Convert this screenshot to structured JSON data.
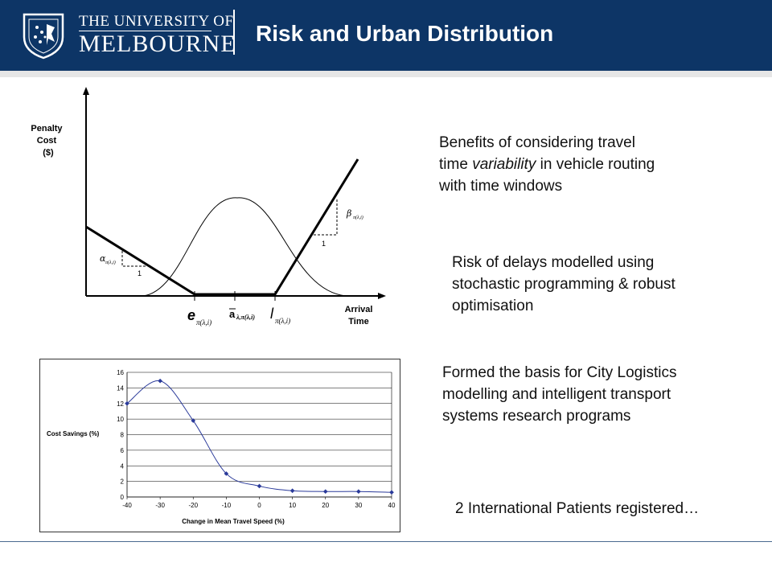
{
  "header": {
    "university_line1": "THE UNIVERSITY OF",
    "university_line2": "MELBOURNE",
    "title": "Risk and Urban Distribution",
    "brand_color": "#0d3566",
    "logo_icon": "university-crest-icon"
  },
  "figure1": {
    "y_label_line1": "Penalty",
    "y_label_line2": "Cost",
    "y_label_line3": "($)",
    "x_label_line1": "Arrival",
    "x_label_line2": "Time",
    "label_e": "e",
    "label_e_sub": "π(λ,i)",
    "label_a": "a",
    "label_a_sub": "λ,π(λ,i)",
    "label_l": "l",
    "label_l_sub": "π(λ,i)",
    "label_alpha": "α",
    "label_alpha_sub": "π(λ,i)",
    "label_beta": "β",
    "label_beta_sub": "π(λ,i)",
    "label_one_left": "1",
    "label_one_right": "1"
  },
  "chart_data": {
    "type": "line",
    "xlabel": "Change in Mean Travel Speed (%)",
    "ylabel": "Cost Savings (%)",
    "xlim": [
      -40,
      40
    ],
    "ylim": [
      0,
      16
    ],
    "xticks": [
      -40,
      -30,
      -20,
      -10,
      0,
      10,
      20,
      30,
      40
    ],
    "yticks": [
      0,
      2,
      4,
      6,
      8,
      10,
      12,
      14,
      16
    ],
    "grid": true,
    "series": [
      {
        "x": [
          -40,
          -30,
          -20,
          -10,
          0,
          10,
          20,
          30,
          40
        ],
        "values": [
          12,
          14.9,
          9.8,
          3,
          1.4,
          0.8,
          0.7,
          0.7,
          0.6
        ]
      }
    ]
  },
  "bullets": {
    "b1_line1": "Benefits of considering travel",
    "b1_line2_pre": "time ",
    "b1_line2_em": "variability",
    "b1_line2_post": " in vehicle routing",
    "b1_line3": "with time windows",
    "b2_line1": "Risk of delays modelled using",
    "b2_line2": "stochastic programming & robust",
    "b2_line3": "optimisation",
    "b3_line1": "Formed the basis for City Logistics",
    "b3_line2": "modelling and intelligent transport",
    "b3_line3": "systems research programs",
    "b4_line1": "2 International Patients registered…"
  }
}
